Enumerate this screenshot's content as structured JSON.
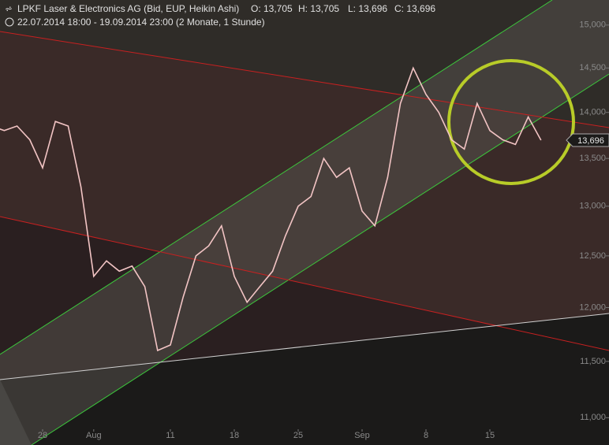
{
  "chart_data": {
    "type": "line",
    "title": "LPKF Laser & Electronics AG (Bid, EUP, Heikin Ashi)",
    "ohlc": [
      "O: 13,705",
      "H: 13,705",
      "L: 13,696",
      "C: 13,696"
    ],
    "subtitle": "22.07.2014 18:00 - 19.09.2014 23:00 (2 Monate, 1 Stunde)",
    "x": [
      "2014-07-22",
      "2014-07-23",
      "2014-07-24",
      "2014-07-25",
      "2014-07-28",
      "2014-07-29",
      "2014-07-30",
      "2014-07-31",
      "2014-08-01",
      "2014-08-04",
      "2014-08-05",
      "2014-08-06",
      "2014-08-07",
      "2014-08-08",
      "2014-08-11",
      "2014-08-12",
      "2014-08-13",
      "2014-08-14",
      "2014-08-15",
      "2014-08-18",
      "2014-08-19",
      "2014-08-20",
      "2014-08-21",
      "2014-08-22",
      "2014-08-25",
      "2014-08-26",
      "2014-08-27",
      "2014-08-28",
      "2014-08-29",
      "2014-09-01",
      "2014-09-02",
      "2014-09-03",
      "2014-09-04",
      "2014-09-05",
      "2014-09-08",
      "2014-09-09",
      "2014-09-10",
      "2014-09-11",
      "2014-09-12",
      "2014-09-15",
      "2014-09-16",
      "2014-09-17",
      "2014-09-18",
      "2014-09-19"
    ],
    "series": [
      {
        "name": "LPKF",
        "color": "#f2c4c4",
        "values": [
          13.85,
          13.8,
          13.85,
          13.7,
          13.4,
          13.9,
          13.85,
          13.2,
          12.3,
          12.45,
          12.35,
          12.4,
          12.2,
          11.6,
          11.65,
          12.1,
          12.5,
          12.6,
          12.8,
          12.3,
          12.05,
          12.2,
          12.35,
          12.7,
          13.0,
          13.1,
          13.5,
          13.3,
          13.4,
          12.95,
          12.8,
          13.3,
          14.1,
          14.5,
          14.2,
          14.0,
          13.7,
          13.6,
          14.1,
          13.8,
          13.7,
          13.65,
          13.95,
          13.696
        ]
      }
    ],
    "last_price": {
      "value": 13.696,
      "label": "13,696"
    },
    "log_scale": true,
    "ylim": [
      10.9,
      15.3
    ],
    "yticks": [
      {
        "value": 11,
        "label": "11,000"
      },
      {
        "value": 11.5,
        "label": "11,500"
      },
      {
        "value": 12,
        "label": "12,000"
      },
      {
        "value": 12.5,
        "label": "12,500"
      },
      {
        "value": 13,
        "label": "13,000"
      },
      {
        "value": 13.5,
        "label": "13,500"
      },
      {
        "value": 14,
        "label": "14,000"
      },
      {
        "value": 14.5,
        "label": "14,500"
      },
      {
        "value": 15,
        "label": "15,000"
      }
    ],
    "xticks": [
      {
        "value": "2014-07-28",
        "label": "28"
      },
      {
        "value": "2014-08-01",
        "label": "Aug"
      },
      {
        "value": "2014-08-11",
        "label": "11"
      },
      {
        "value": "2014-08-18",
        "label": "18"
      },
      {
        "value": "2014-08-25",
        "label": "25"
      },
      {
        "value": "2014-09-01",
        "label": "Sep"
      },
      {
        "value": "2014-09-08",
        "label": "8"
      },
      {
        "value": "2014-09-15",
        "label": "15"
      }
    ]
  }
}
